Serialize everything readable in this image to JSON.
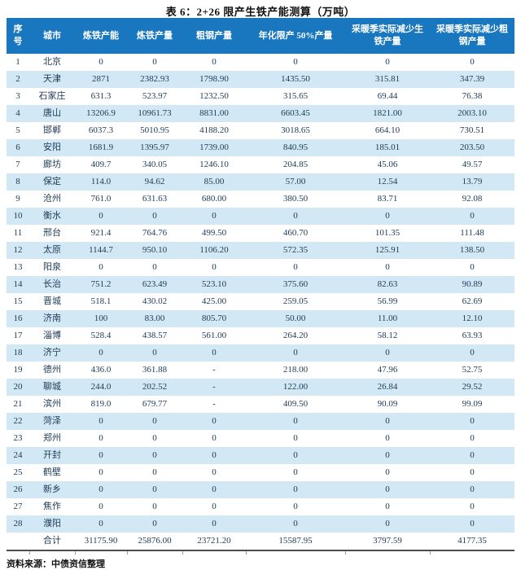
{
  "title": "表 6：2+26 限产生铁产能测算（万吨）",
  "source_note": "资料来源：中债资信整理",
  "colors": {
    "header_background": "#1877be",
    "header_text": "#ffffff",
    "row_stripe": "#d2e9f5",
    "body_text": "#1d3a55",
    "rule": "#4d4d4d"
  },
  "table": {
    "columns": [
      "序\n号",
      "城市",
      "炼铁产能",
      "炼铁产量",
      "粗钢产量",
      "年化限产 50%产量",
      "采暖季实际减少生\n铁产量",
      "采暖季实际减少粗\n钢产量"
    ],
    "rows": [
      [
        "1",
        "北京",
        "0",
        "0",
        "0",
        "0",
        "0",
        "0"
      ],
      [
        "2",
        "天津",
        "2871",
        "2382.93",
        "1798.90",
        "1435.50",
        "315.81",
        "347.39"
      ],
      [
        "3",
        "石家庄",
        "631.3",
        "523.97",
        "1232.50",
        "315.65",
        "69.44",
        "76.38"
      ],
      [
        "4",
        "唐山",
        "13206.9",
        "10961.73",
        "8831.00",
        "6603.45",
        "1821.00",
        "2003.10"
      ],
      [
        "5",
        "邯郸",
        "6037.3",
        "5010.95",
        "4188.20",
        "3018.65",
        "664.10",
        "730.51"
      ],
      [
        "6",
        "安阳",
        "1681.9",
        "1395.97",
        "1739.00",
        "840.95",
        "185.01",
        "203.50"
      ],
      [
        "7",
        "廊坊",
        "409.7",
        "340.05",
        "1246.10",
        "204.85",
        "45.06",
        "49.57"
      ],
      [
        "8",
        "保定",
        "114.0",
        "94.62",
        "85.00",
        "57.00",
        "12.54",
        "13.79"
      ],
      [
        "9",
        "沧州",
        "761.0",
        "631.63",
        "680.00",
        "380.50",
        "83.71",
        "92.08"
      ],
      [
        "10",
        "衡水",
        "0",
        "0",
        "0",
        "0",
        "0",
        "0"
      ],
      [
        "11",
        "邢台",
        "921.4",
        "764.76",
        "499.50",
        "460.70",
        "101.35",
        "111.48"
      ],
      [
        "12",
        "太原",
        "1144.7",
        "950.10",
        "1106.20",
        "572.35",
        "125.91",
        "138.50"
      ],
      [
        "13",
        "阳泉",
        "0",
        "0",
        "0",
        "0",
        "0",
        "0"
      ],
      [
        "14",
        "长治",
        "751.2",
        "623.49",
        "523.10",
        "375.60",
        "82.63",
        "90.89"
      ],
      [
        "15",
        "晋城",
        "518.1",
        "430.02",
        "425.00",
        "259.05",
        "56.99",
        "62.69"
      ],
      [
        "16",
        "济南",
        "100",
        "83.00",
        "805.70",
        "50.00",
        "11.00",
        "12.10"
      ],
      [
        "17",
        "淄博",
        "528.4",
        "438.57",
        "561.00",
        "264.20",
        "58.12",
        "63.93"
      ],
      [
        "18",
        "济宁",
        "0",
        "0",
        "0",
        "0",
        "0",
        "0"
      ],
      [
        "19",
        "德州",
        "436.0",
        "361.88",
        "-",
        "218.00",
        "47.96",
        "52.75"
      ],
      [
        "20",
        "聊城",
        "244.0",
        "202.52",
        "-",
        "122.00",
        "26.84",
        "29.52"
      ],
      [
        "21",
        "滨州",
        "819.0",
        "679.77",
        "-",
        "409.50",
        "90.09",
        "99.09"
      ],
      [
        "22",
        "菏泽",
        "0",
        "0",
        "0",
        "0",
        "0",
        "0"
      ],
      [
        "23",
        "郑州",
        "0",
        "0",
        "0",
        "0",
        "0",
        "0"
      ],
      [
        "24",
        "开封",
        "0",
        "0",
        "0",
        "0",
        "0",
        "0"
      ],
      [
        "25",
        "鹤壁",
        "0",
        "0",
        "0",
        "0",
        "0",
        "0"
      ],
      [
        "26",
        "新乡",
        "0",
        "0",
        "0",
        "0",
        "0",
        "0"
      ],
      [
        "27",
        "焦作",
        "0",
        "0",
        "0",
        "0",
        "0",
        "0"
      ],
      [
        "28",
        "濮阳",
        "0",
        "0",
        "0",
        "0",
        "0",
        "0"
      ]
    ],
    "total_row": [
      "",
      "合计",
      "31175.90",
      "25876.00",
      "23721.20",
      "15587.95",
      "3797.59",
      "4177.35"
    ]
  }
}
